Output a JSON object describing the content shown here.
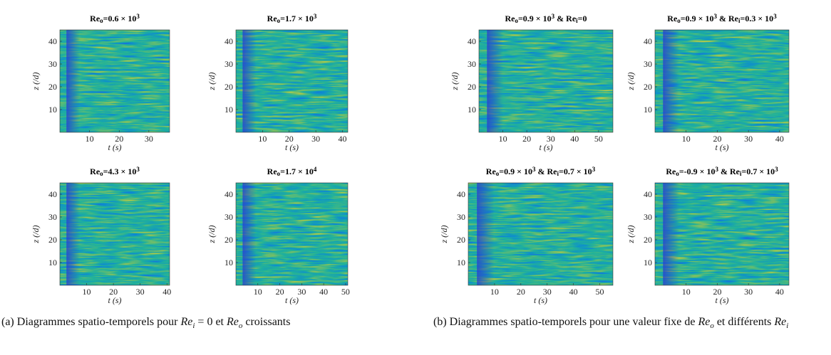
{
  "figure": {
    "subfigures": [
      {
        "caption": [
          {
            "text": "(a) Diagrammes spatio-temporels pour "
          },
          {
            "text": "Re",
            "style": "italic"
          },
          {
            "text": "i",
            "style": "italic",
            "script": "sub"
          },
          {
            "text": " = 0 et "
          },
          {
            "text": "Re",
            "style": "italic"
          },
          {
            "text": "o",
            "style": "italic",
            "script": "sub"
          },
          {
            "text": " croissants"
          }
        ],
        "panels": [
          {
            "title": [
              {
                "text": "Re"
              },
              {
                "text": "o",
                "script": "sub"
              },
              {
                "text": "=0.6 × 10"
              },
              {
                "text": "3",
                "script": "sup"
              }
            ],
            "xlabel": "t (s)",
            "ylabel": "z (/d)",
            "xlim": [
              0,
              37
            ],
            "xticks": [
              10,
              20,
              30
            ],
            "ylim": [
              0,
              45
            ],
            "yticks": [
              10,
              20,
              30,
              40
            ]
          },
          {
            "title": [
              {
                "text": "Re"
              },
              {
                "text": "o",
                "script": "sub"
              },
              {
                "text": "=1.7 × 10"
              },
              {
                "text": "3",
                "script": "sup"
              }
            ],
            "xlabel": "t (s)",
            "ylabel": "z (/d)",
            "xlim": [
              0,
              42
            ],
            "xticks": [
              10,
              20,
              30,
              40
            ],
            "ylim": [
              0,
              45
            ],
            "yticks": [
              10,
              20,
              30,
              40
            ]
          },
          {
            "title": [
              {
                "text": "Re"
              },
              {
                "text": "o",
                "script": "sub"
              },
              {
                "text": "=4.3 × 10"
              },
              {
                "text": "3",
                "script": "sup"
              }
            ],
            "xlabel": "t (s)",
            "ylabel": "z (/d)",
            "xlim": [
              0,
              41
            ],
            "xticks": [
              10,
              20,
              30,
              40
            ],
            "ylim": [
              0,
              45
            ],
            "yticks": [
              10,
              20,
              30,
              40
            ]
          },
          {
            "title": [
              {
                "text": "Re"
              },
              {
                "text": "o",
                "script": "sub"
              },
              {
                "text": "=1.7 × 10"
              },
              {
                "text": "4",
                "script": "sup"
              }
            ],
            "xlabel": "t (s)",
            "ylabel": "z (/d)",
            "xlim": [
              0,
              51
            ],
            "xticks": [
              10,
              20,
              30,
              40,
              50
            ],
            "ylim": [
              0,
              45
            ],
            "yticks": [
              10,
              20,
              30,
              40
            ]
          }
        ]
      },
      {
        "caption": [
          {
            "text": "(b) Diagrammes spatio-temporels pour une valeur fixe de "
          },
          {
            "text": "Re",
            "style": "italic"
          },
          {
            "text": "o",
            "style": "italic",
            "script": "sub"
          },
          {
            "text": " et différents "
          },
          {
            "text": "Re",
            "style": "italic"
          },
          {
            "text": "i",
            "style": "italic",
            "script": "sub"
          }
        ],
        "panels": [
          {
            "title": [
              {
                "text": "Re"
              },
              {
                "text": "o",
                "script": "sub"
              },
              {
                "text": "=0.9 × 10"
              },
              {
                "text": "3",
                "script": "sup"
              },
              {
                "text": " & Re"
              },
              {
                "text": "i",
                "script": "sub"
              },
              {
                "text": "=0"
              }
            ],
            "xlabel": "t (s)",
            "ylabel": "z (/d)",
            "xlim": [
              0,
              56
            ],
            "xticks": [
              10,
              20,
              30,
              40,
              50
            ],
            "ylim": [
              0,
              45
            ],
            "yticks": [
              10,
              20,
              30,
              40
            ]
          },
          {
            "title": [
              {
                "text": "Re"
              },
              {
                "text": "o",
                "script": "sub"
              },
              {
                "text": "=0.9 × 10"
              },
              {
                "text": "3",
                "script": "sup"
              },
              {
                "text": " & Re"
              },
              {
                "text": "i",
                "script": "sub"
              },
              {
                "text": "=0.3 × 10"
              },
              {
                "text": "3",
                "script": "sup"
              }
            ],
            "xlabel": "t (s)",
            "ylabel": "z (/d)",
            "xlim": [
              0,
              43
            ],
            "xticks": [
              10,
              20,
              30,
              40
            ],
            "ylim": [
              0,
              45
            ],
            "yticks": [
              10,
              20,
              30,
              40
            ]
          },
          {
            "title": [
              {
                "text": "Re"
              },
              {
                "text": "o",
                "script": "sub"
              },
              {
                "text": "=0.9 × 10"
              },
              {
                "text": "3",
                "script": "sup"
              },
              {
                "text": " & Re"
              },
              {
                "text": "i",
                "script": "sub"
              },
              {
                "text": "=0.7 × 10"
              },
              {
                "text": "3",
                "script": "sup"
              }
            ],
            "xlabel": "t (s)",
            "ylabel": "z (/d)",
            "xlim": [
              0,
              55
            ],
            "xticks": [
              10,
              20,
              30,
              40,
              50
            ],
            "ylim": [
              0,
              45
            ],
            "yticks": [
              10,
              20,
              30,
              40
            ]
          },
          {
            "title": [
              {
                "text": "Re"
              },
              {
                "text": "o",
                "script": "sub"
              },
              {
                "text": "=-0.9 × 10"
              },
              {
                "text": "3",
                "script": "sup"
              },
              {
                "text": " & Re"
              },
              {
                "text": "i",
                "script": "sub"
              },
              {
                "text": "=0.7 × 10"
              },
              {
                "text": "3",
                "script": "sup"
              }
            ],
            "xlabel": "t (s)",
            "ylabel": "z (/d)",
            "xlim": [
              0,
              43
            ],
            "xticks": [
              10,
              20,
              30,
              40
            ],
            "ylim": [
              0,
              45
            ],
            "yticks": [
              10,
              20,
              30,
              40
            ]
          }
        ]
      }
    ]
  }
}
